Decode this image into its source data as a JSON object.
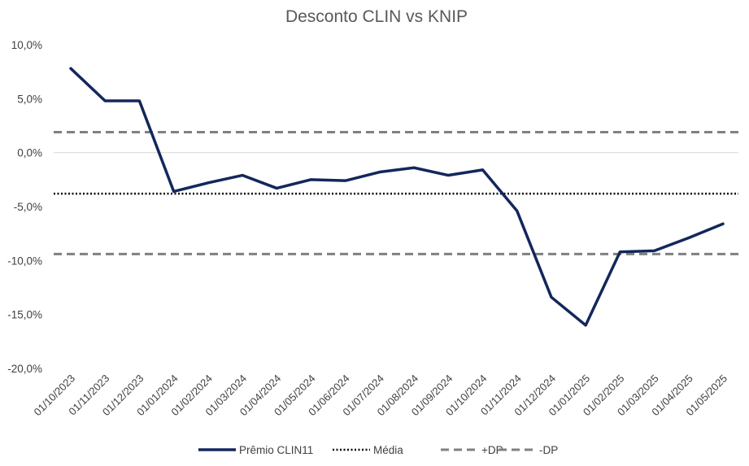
{
  "chart_data": {
    "type": "line",
    "title": "Desconto CLIN vs KNIP",
    "xlabel": "",
    "ylabel": "",
    "categories": [
      "01/10/2023",
      "01/11/2023",
      "01/12/2023",
      "01/01/2024",
      "01/02/2024",
      "01/03/2024",
      "01/04/2024",
      "01/05/2024",
      "01/06/2024",
      "01/07/2024",
      "01/08/2024",
      "01/09/2024",
      "01/10/2024",
      "01/11/2024",
      "01/12/2024",
      "01/01/2025",
      "01/02/2025",
      "01/03/2025",
      "01/04/2025",
      "01/05/2025"
    ],
    "ylim": [
      -0.2,
      0.1
    ],
    "yticks": [
      0.1,
      0.05,
      0.0,
      -0.05,
      -0.1,
      -0.15,
      -0.2
    ],
    "ytick_labels": [
      "10,0%",
      "5,0%",
      "0,0%",
      "-5,0%",
      "-10,0%",
      "-15,0%",
      "-20,0%"
    ],
    "series": [
      {
        "name": "Prêmio CLIN11",
        "color": "#13275c",
        "style": "solid",
        "values": [
          0.078,
          0.048,
          0.048,
          -0.036,
          -0.028,
          -0.021,
          -0.033,
          -0.025,
          -0.026,
          -0.018,
          -0.014,
          -0.021,
          -0.016,
          -0.054,
          -0.134,
          -0.16,
          -0.092,
          -0.091,
          -0.079,
          -0.066
        ]
      },
      {
        "name": "Média",
        "color": "#000000",
        "style": "dotted",
        "value": -0.038
      },
      {
        "name": "+DP",
        "color": "#808080",
        "style": "dashed",
        "value": 0.019
      },
      {
        "name": "-DP",
        "color": "#808080",
        "style": "dashed",
        "value": -0.094
      }
    ],
    "legend_position": "bottom",
    "grid": false
  }
}
